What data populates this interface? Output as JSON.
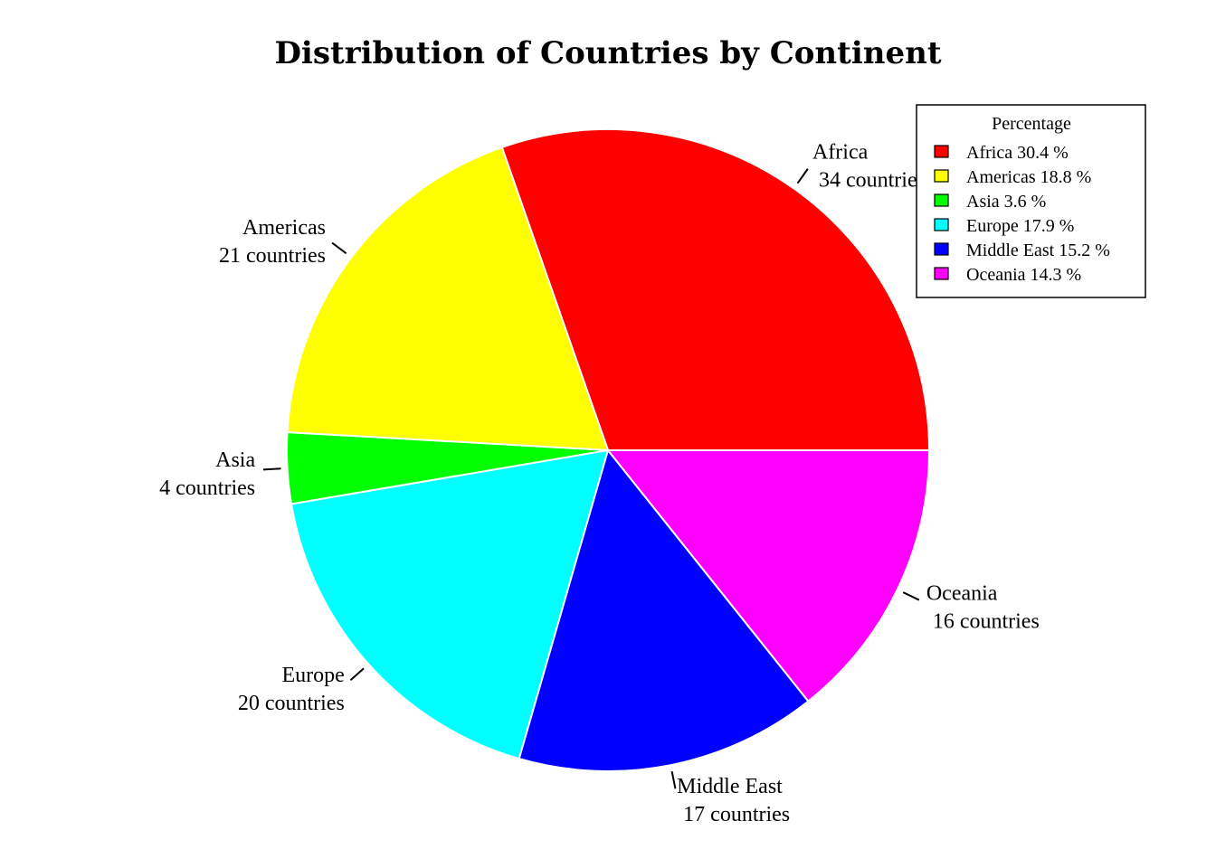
{
  "chart_data": {
    "type": "pie",
    "title": "Distribution of Countries by Continent",
    "slices": [
      {
        "name": "Africa",
        "count": 34,
        "count_label": "34 countries",
        "percent": 30.4,
        "legend_label": "Africa 30.4 %",
        "color": "#ff0000"
      },
      {
        "name": "Americas",
        "count": 21,
        "count_label": "21 countries",
        "percent": 18.8,
        "legend_label": "Americas 18.8 %",
        "color": "#ffff00"
      },
      {
        "name": "Asia",
        "count": 4,
        "count_label": "4 countries",
        "percent": 3.6,
        "legend_label": "Asia 3.6 %",
        "color": "#00ff00"
      },
      {
        "name": "Europe",
        "count": 20,
        "count_label": "20 countries",
        "percent": 17.9,
        "legend_label": "Europe 17.9 %",
        "color": "#00ffff"
      },
      {
        "name": "Middle East",
        "count": 17,
        "count_label": "17 countries",
        "percent": 15.2,
        "legend_label": "Middle East 15.2 %",
        "color": "#0000ff"
      },
      {
        "name": "Oceania",
        "count": 16,
        "count_label": "16 countries",
        "percent": 14.3,
        "legend_label": "Oceania 14.3 %",
        "color": "#ff00ff"
      }
    ],
    "legend": {
      "title": "Percentage",
      "position": "top-right"
    },
    "start_angle": "3 o'clock",
    "direction": "counterclockwise"
  }
}
